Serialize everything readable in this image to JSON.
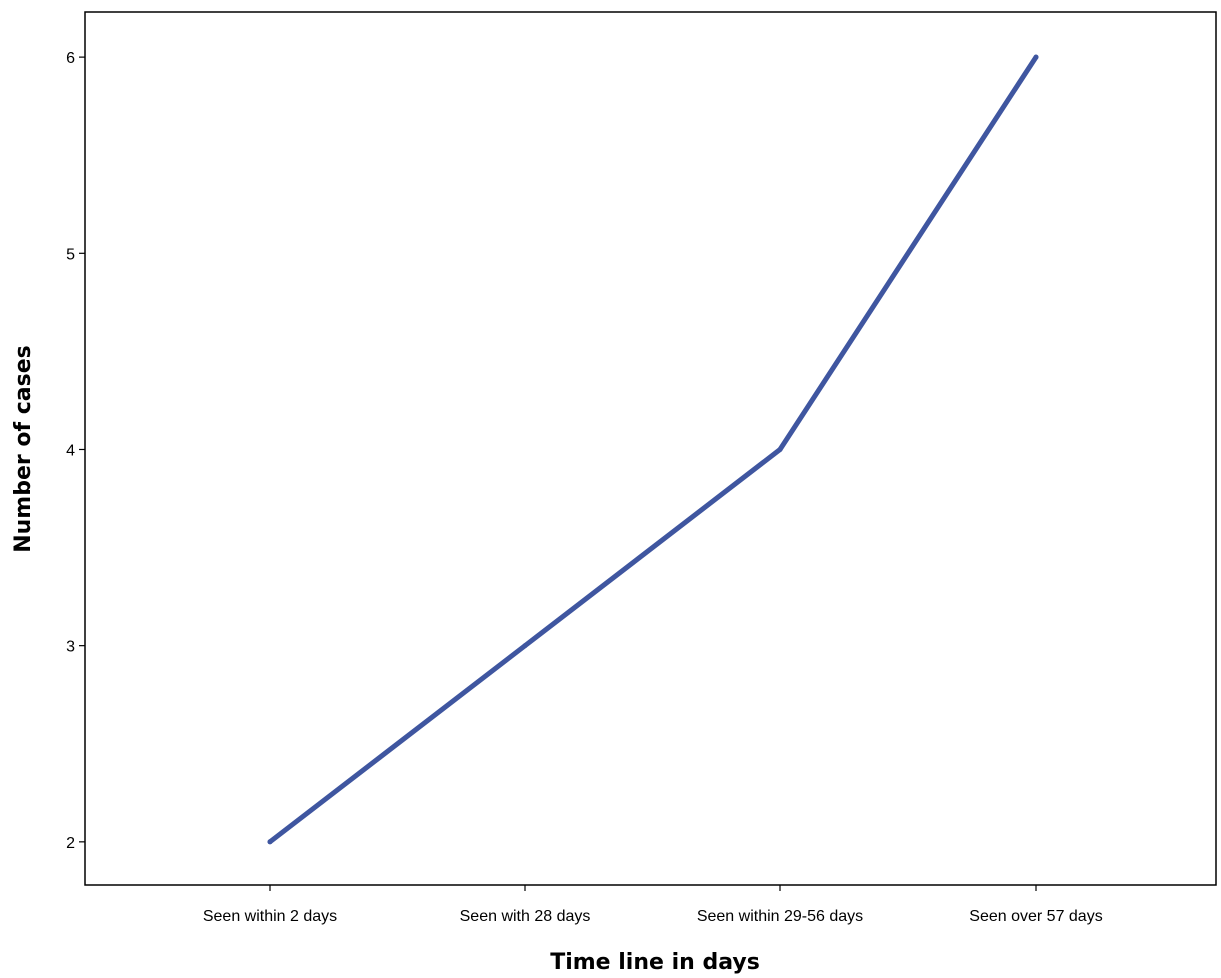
{
  "chart_data": {
    "type": "line",
    "title": "",
    "xlabel": "Time line in days",
    "ylabel": "Number of cases",
    "categories": [
      "Seen within 2 days",
      "Seen with 28 days",
      "Seen within 29-56 days",
      "Seen over 57 days"
    ],
    "series": [
      {
        "values": [
          2,
          3,
          4,
          6
        ]
      }
    ],
    "yticks": [
      2,
      3,
      4,
      5,
      6
    ],
    "ytick_labels": [
      "2",
      "3",
      "4",
      "5",
      "6"
    ],
    "ylim": [
      1.78,
      6.23
    ],
    "grid": false,
    "legend": "none",
    "line_color": "#3f56a0",
    "axis_color": "#000000"
  }
}
